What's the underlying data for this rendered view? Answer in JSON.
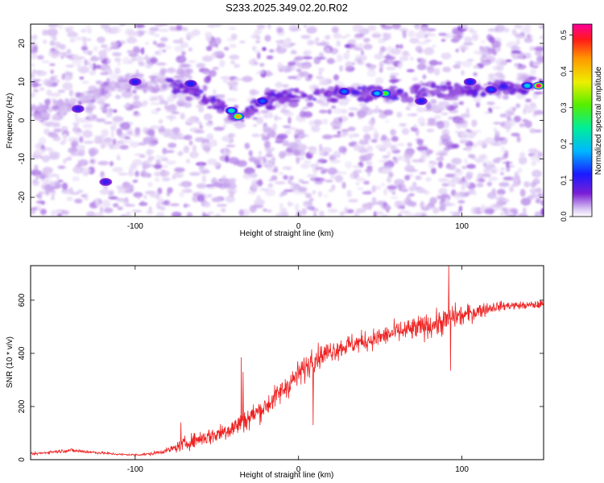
{
  "title": "S233.2025.349.02.20.R02",
  "chart_data": [
    {
      "type": "heatmap",
      "xlabel": "Height of straight line (km)",
      "ylabel": "Frequency (Hz)",
      "xlim": [
        -164,
        150
      ],
      "ylim": [
        -25,
        25
      ],
      "x_ticks": [
        -100,
        0,
        100
      ],
      "y_ticks": [
        -20,
        -10,
        0,
        10,
        20
      ],
      "colorbar": {
        "label": "Normalized spectral amplitude",
        "range": [
          0,
          0.53
        ],
        "ticks": [
          0,
          0.1,
          0.2,
          0.3,
          0.4,
          0.5
        ],
        "colors": [
          "#ffffff",
          "#6a0dad",
          "#0000ff",
          "#00bfff",
          "#00ff66",
          "#ffff00",
          "#ff8000",
          "#ff0000",
          "#ff00aa"
        ]
      },
      "ridge": [
        {
          "x": -164,
          "y": 2
        },
        {
          "x": -140,
          "y": 4
        },
        {
          "x": -120,
          "y": 8
        },
        {
          "x": -100,
          "y": 10
        },
        {
          "x": -75,
          "y": 9
        },
        {
          "x": -55,
          "y": 6
        },
        {
          "x": -40,
          "y": 1.5
        },
        {
          "x": -30,
          "y": 2.5
        },
        {
          "x": -20,
          "y": 5
        },
        {
          "x": 0,
          "y": 7
        },
        {
          "x": 25,
          "y": 7
        },
        {
          "x": 55,
          "y": 7
        },
        {
          "x": 80,
          "y": 7.5
        },
        {
          "x": 110,
          "y": 8
        },
        {
          "x": 150,
          "y": 9
        }
      ],
      "hotspots": [
        {
          "x": -37,
          "y": 1,
          "value": 0.42
        },
        {
          "x": -41,
          "y": 2.5,
          "value": 0.22
        },
        {
          "x": 53,
          "y": 7,
          "value": 0.3
        },
        {
          "x": 48,
          "y": 7,
          "value": 0.18
        },
        {
          "x": 147,
          "y": 9,
          "value": 0.53
        },
        {
          "x": 140,
          "y": 9,
          "value": 0.2
        },
        {
          "x": 28,
          "y": 7.5,
          "value": 0.15
        },
        {
          "x": -22,
          "y": 5,
          "value": 0.14
        },
        {
          "x": -66,
          "y": 9.5,
          "value": 0.12
        },
        {
          "x": 105,
          "y": 10,
          "value": 0.12
        },
        {
          "x": 118,
          "y": 8,
          "value": 0.13
        },
        {
          "x": 75,
          "y": 5,
          "value": 0.11
        },
        {
          "x": -135,
          "y": 3,
          "value": 0.1
        },
        {
          "x": -118,
          "y": -16,
          "value": 0.1
        },
        {
          "x": -100,
          "y": 10,
          "value": 0.11
        }
      ]
    },
    {
      "type": "line",
      "xlabel": "Height of straight line (km)",
      "ylabel": "SNR (10 * v/v)",
      "xlim": [
        -164,
        150
      ],
      "ylim": [
        0,
        730
      ],
      "x_ticks": [
        -100,
        0,
        100
      ],
      "y_ticks": [
        0,
        200,
        400,
        600
      ],
      "line_color": "#ee2222",
      "x": [
        -164,
        -150,
        -140,
        -130,
        -120,
        -110,
        -100,
        -90,
        -80,
        -75,
        -70,
        -60,
        -50,
        -45,
        -40,
        -35,
        -30,
        -20,
        -10,
        0,
        10,
        20,
        30,
        40,
        50,
        60,
        70,
        80,
        90,
        95,
        100,
        110,
        120,
        130,
        140,
        150
      ],
      "y": [
        20,
        30,
        35,
        30,
        25,
        20,
        18,
        22,
        35,
        45,
        60,
        80,
        95,
        110,
        120,
        140,
        160,
        200,
        260,
        320,
        380,
        410,
        430,
        445,
        460,
        480,
        490,
        505,
        520,
        540,
        540,
        560,
        575,
        580,
        580,
        585
      ],
      "noise": [
        5,
        6,
        8,
        6,
        5,
        4,
        4,
        6,
        10,
        18,
        25,
        30,
        35,
        40,
        40,
        40,
        40,
        40,
        45,
        50,
        45,
        40,
        40,
        38,
        38,
        40,
        45,
        45,
        50,
        45,
        40,
        30,
        20,
        15,
        15,
        15
      ],
      "spikes": [
        {
          "x": -35,
          "y": 385
        },
        {
          "x": -34,
          "y": 330
        },
        {
          "x": 8,
          "y": 415
        },
        {
          "x": 9,
          "y": 130
        },
        {
          "x": 92,
          "y": 730
        },
        {
          "x": 93,
          "y": 335
        },
        {
          "x": -72,
          "y": 140
        },
        {
          "x": -30,
          "y": 110
        }
      ]
    }
  ]
}
